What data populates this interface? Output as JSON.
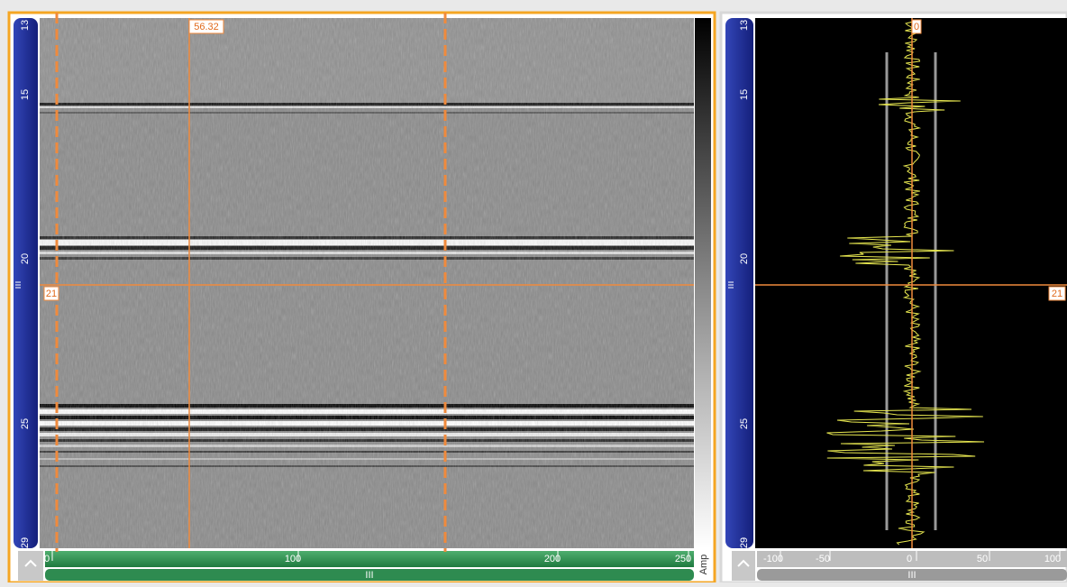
{
  "bscan": {
    "depth_ticks": [
      13,
      15,
      20,
      25,
      29
    ],
    "scan_ticks": [
      0,
      100,
      200,
      250
    ],
    "cursor_scan_label": 56.32,
    "cursor_depth_label": 21,
    "colorbar_label": "Amp",
    "scroll_label": "III"
  },
  "ascan": {
    "depth_ticks": [
      13,
      15,
      20,
      25,
      29
    ],
    "amplitude_ticks": [
      -100,
      -50,
      0,
      50,
      100
    ],
    "cursor_amp_label": 0,
    "cursor_depth_label": 21,
    "scroll_label": "III"
  }
}
